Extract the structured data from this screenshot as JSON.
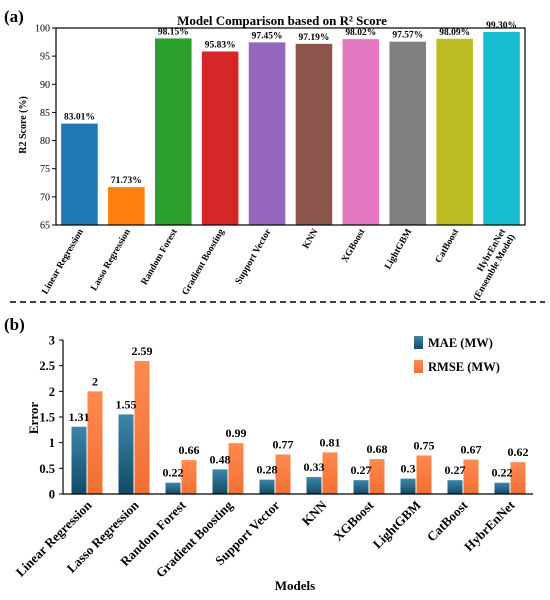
{
  "chart_data": [
    {
      "panel_label": "(a)",
      "type": "bar",
      "title": "Model Comparison based on R² Score",
      "xlabel": "",
      "ylabel": "R2 Score (%)",
      "ylim": [
        65,
        100
      ],
      "yticks": [
        "65",
        "70",
        "75",
        "80",
        "85",
        "90",
        "95",
        "100"
      ],
      "grid": false,
      "categories": [
        "Linear Regression",
        "Lasso Regression",
        "Random Forest",
        "Gradient Boosting",
        "Support Vector",
        "KNN",
        "XGBoost",
        "LightGBM",
        "CatBoost",
        "HybrEnNet\n(Ensemble Model)"
      ],
      "values": [
        83.01,
        71.73,
        98.15,
        95.83,
        97.45,
        97.19,
        98.02,
        97.57,
        98.09,
        99.3
      ],
      "value_labels": [
        "83.01%",
        "71.73%",
        "98.15%",
        "95.83%",
        "97.45%",
        "97.19%",
        "98.02%",
        "97.57%",
        "98.09%",
        "99.30%"
      ],
      "colors": [
        "#1f77b4",
        "#ff7f0e",
        "#2ca02c",
        "#d62728",
        "#9467bd",
        "#8c564b",
        "#e377c2",
        "#7f7f7f",
        "#bcbd22",
        "#17becf"
      ]
    },
    {
      "panel_label": "(b)",
      "type": "bar",
      "title": "",
      "xlabel": "Models",
      "ylabel": "Error",
      "ylim": [
        0,
        3
      ],
      "yticks": [
        "0",
        "0.5",
        "1",
        "1.5",
        "2",
        "2.5",
        "3"
      ],
      "grid": false,
      "legend_position": "top-right",
      "categories": [
        "Linear Regression",
        "Lasso Regression",
        "Random Forest",
        "Gradient Boosting",
        "Support Vector",
        "KNN",
        "XGBoost",
        "LightGBM",
        "CatBoost",
        "HybrEnNet"
      ],
      "series": [
        {
          "name": "MAE (MW)",
          "color": "#1f5f80",
          "values": [
            1.31,
            1.55,
            0.22,
            0.48,
            0.28,
            0.33,
            0.27,
            0.3,
            0.27,
            0.22
          ],
          "value_labels": [
            "1.31",
            "1.55",
            "0.22",
            "0.48",
            "0.28",
            "0.33",
            "0.27",
            "0.3",
            "0.27",
            "0.22"
          ]
        },
        {
          "name": "RMSE (MW)",
          "color": "#f07840",
          "values": [
            2,
            2.59,
            0.66,
            0.99,
            0.77,
            0.81,
            0.68,
            0.75,
            0.67,
            0.62
          ],
          "value_labels": [
            "2",
            "2.59",
            "0.66",
            "0.99",
            "0.77",
            "0.81",
            "0.68",
            "0.75",
            "0.67",
            "0.62"
          ]
        }
      ]
    }
  ]
}
